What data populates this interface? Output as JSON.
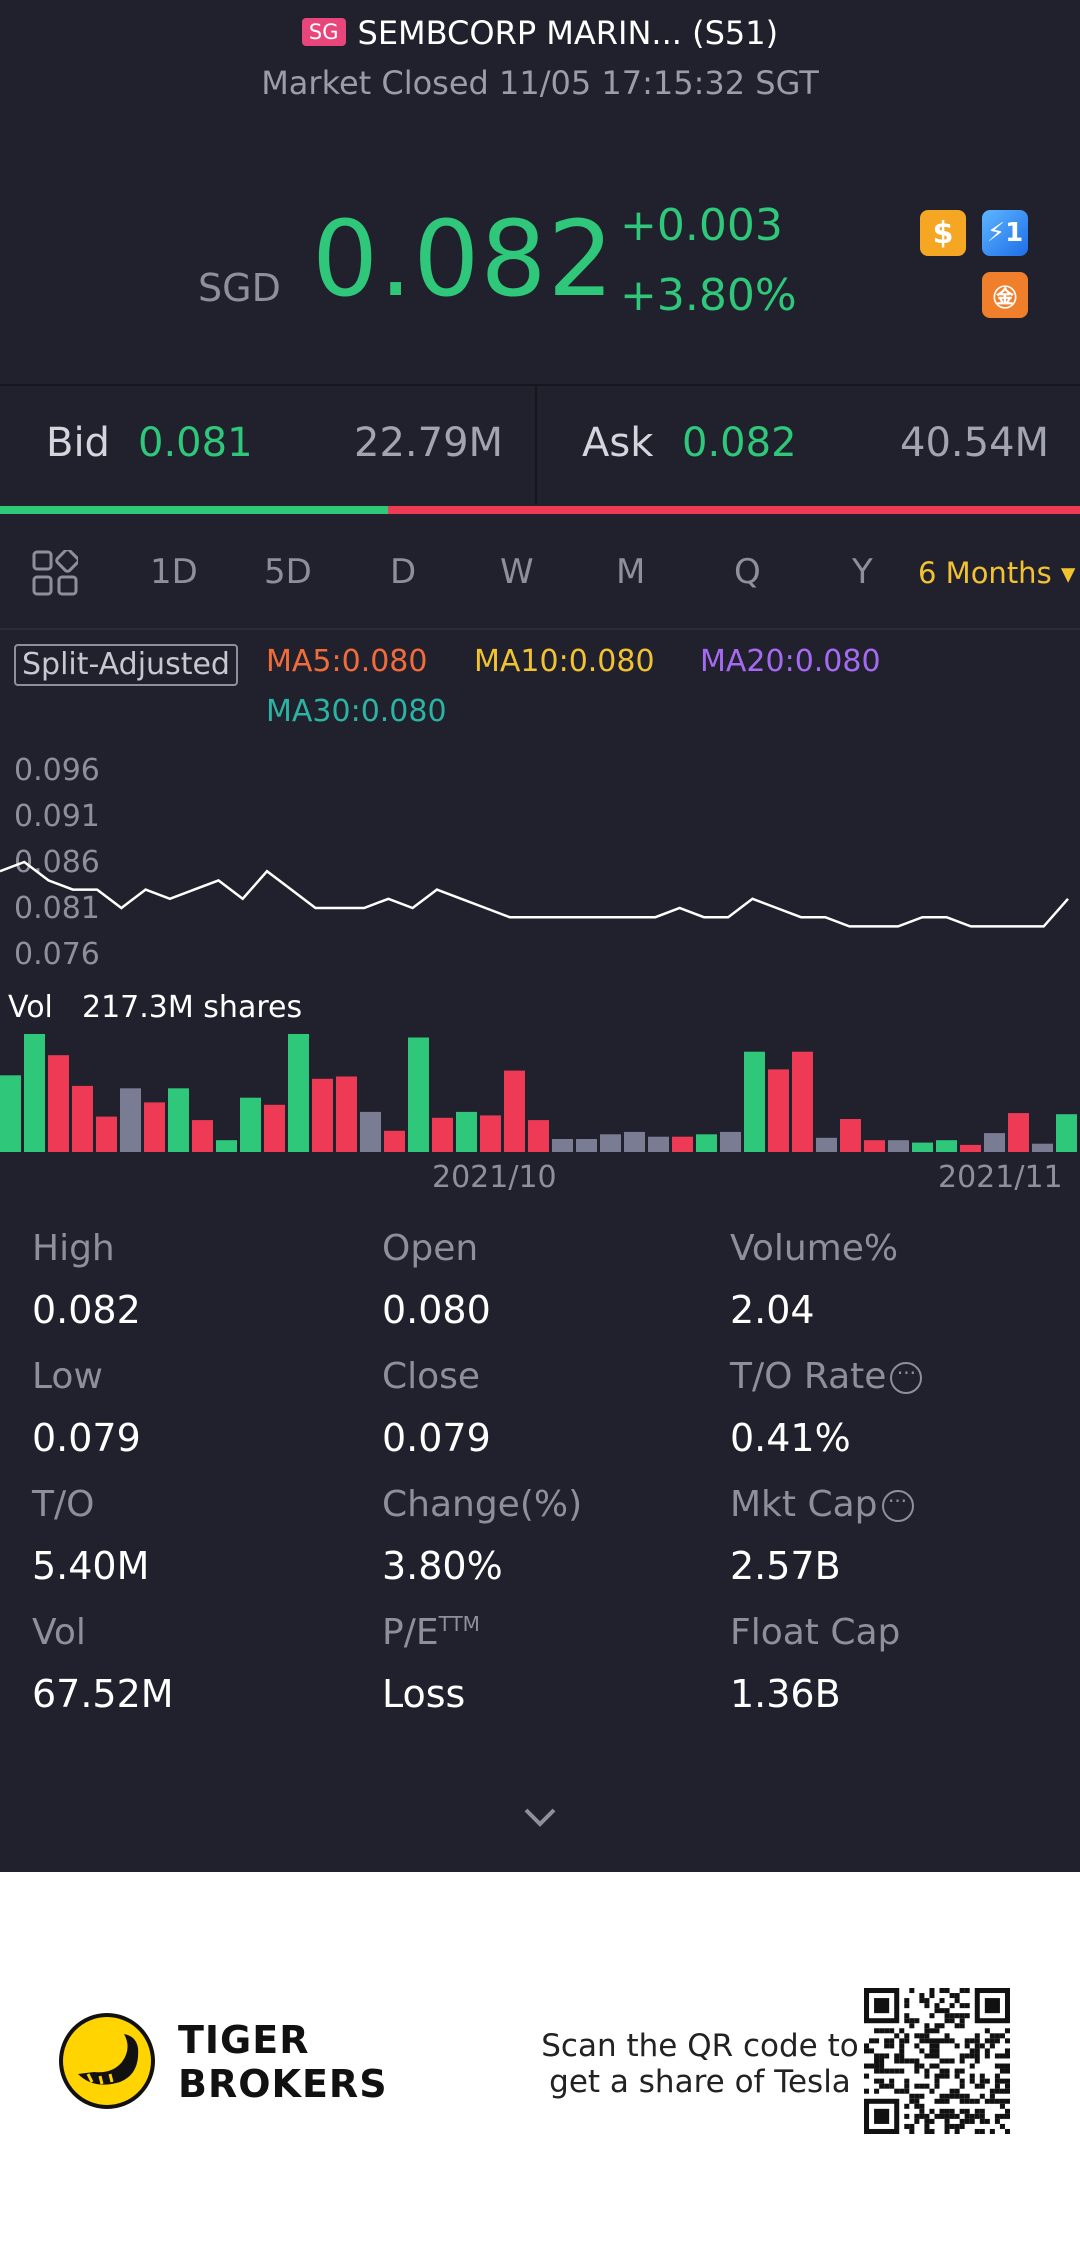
{
  "header": {
    "flag": "SG",
    "title": "SEMBCORP MARIN... (S51)",
    "status": "Market Closed 11/05 17:15:32 SGT"
  },
  "quote": {
    "currency": "SGD",
    "price": "0.082",
    "change": "+0.003",
    "change_pct": "+3.80%",
    "badges": [
      "dollar-icon",
      "flash-icon",
      "finance-icon"
    ],
    "badge_dollar": "$",
    "badge_flash": "⚡1",
    "badge_fin": "㊎"
  },
  "bidask": {
    "bid_label": "Bid",
    "bid_price": "0.081",
    "bid_size": "22.79M",
    "ask_label": "Ask",
    "ask_price": "0.082",
    "ask_size": "40.54M",
    "bid_ratio": 0.36
  },
  "tabs": {
    "items": [
      "1D",
      "5D",
      "D",
      "W",
      "M",
      "Q",
      "Y"
    ],
    "selected": "6 Months ▾"
  },
  "indicators": {
    "split": "Split-Adjusted",
    "ma5": "MA5:0.080",
    "ma10": "MA10:0.080",
    "ma20": "MA20:0.080",
    "ma30": "MA30:0.080"
  },
  "chart_data": {
    "type": "line",
    "y_ticks": [
      "0.096",
      "0.091",
      "0.086",
      "0.081",
      "0.076"
    ],
    "ylim": [
      0.076,
      0.096
    ],
    "prices": [
      0.085,
      0.086,
      0.084,
      0.083,
      0.083,
      0.081,
      0.083,
      0.082,
      0.083,
      0.084,
      0.082,
      0.085,
      0.083,
      0.081,
      0.081,
      0.081,
      0.082,
      0.081,
      0.083,
      0.082,
      0.081,
      0.08,
      0.08,
      0.08,
      0.08,
      0.08,
      0.08,
      0.08,
      0.081,
      0.08,
      0.08,
      0.082,
      0.081,
      0.08,
      0.08,
      0.079,
      0.079,
      0.079,
      0.08,
      0.08,
      0.079,
      0.079,
      0.079,
      0.079,
      0.082
    ],
    "vol_label": "Vol",
    "vol_text": "217.3M shares",
    "volume": [
      {
        "v": 0.65,
        "c": "green"
      },
      {
        "v": 1.0,
        "c": "green"
      },
      {
        "v": 0.82,
        "c": "red"
      },
      {
        "v": 0.56,
        "c": "red"
      },
      {
        "v": 0.3,
        "c": "red"
      },
      {
        "v": 0.54,
        "c": "gray"
      },
      {
        "v": 0.42,
        "c": "red"
      },
      {
        "v": 0.54,
        "c": "green"
      },
      {
        "v": 0.27,
        "c": "red"
      },
      {
        "v": 0.1,
        "c": "green"
      },
      {
        "v": 0.46,
        "c": "green"
      },
      {
        "v": 0.4,
        "c": "red"
      },
      {
        "v": 1.0,
        "c": "green"
      },
      {
        "v": 0.62,
        "c": "red"
      },
      {
        "v": 0.64,
        "c": "red"
      },
      {
        "v": 0.34,
        "c": "gray"
      },
      {
        "v": 0.18,
        "c": "red"
      },
      {
        "v": 0.97,
        "c": "green"
      },
      {
        "v": 0.29,
        "c": "red"
      },
      {
        "v": 0.34,
        "c": "green"
      },
      {
        "v": 0.31,
        "c": "red"
      },
      {
        "v": 0.69,
        "c": "red"
      },
      {
        "v": 0.27,
        "c": "red"
      },
      {
        "v": 0.11,
        "c": "gray"
      },
      {
        "v": 0.11,
        "c": "gray"
      },
      {
        "v": 0.15,
        "c": "gray"
      },
      {
        "v": 0.17,
        "c": "gray"
      },
      {
        "v": 0.13,
        "c": "gray"
      },
      {
        "v": 0.13,
        "c": "red"
      },
      {
        "v": 0.15,
        "c": "green"
      },
      {
        "v": 0.17,
        "c": "gray"
      },
      {
        "v": 0.85,
        "c": "green"
      },
      {
        "v": 0.7,
        "c": "red"
      },
      {
        "v": 0.85,
        "c": "red"
      },
      {
        "v": 0.12,
        "c": "gray"
      },
      {
        "v": 0.28,
        "c": "red"
      },
      {
        "v": 0.1,
        "c": "red"
      },
      {
        "v": 0.1,
        "c": "gray"
      },
      {
        "v": 0.08,
        "c": "green"
      },
      {
        "v": 0.1,
        "c": "green"
      },
      {
        "v": 0.06,
        "c": "red"
      },
      {
        "v": 0.16,
        "c": "gray"
      },
      {
        "v": 0.33,
        "c": "red"
      },
      {
        "v": 0.07,
        "c": "gray"
      },
      {
        "v": 0.32,
        "c": "green"
      }
    ],
    "x_ticks": [
      "2021/10",
      "2021/11"
    ],
    "line_color": "#ffffff",
    "colors": {
      "green": "#2fc77a",
      "red": "#ef3a56",
      "gray": "#7a7c93"
    }
  },
  "stats": {
    "high_label": "High",
    "high": "0.082",
    "open_label": "Open",
    "open": "0.080",
    "volpct_label": "Volume%",
    "volpct": "2.04",
    "low_label": "Low",
    "low": "0.079",
    "close_label": "Close",
    "close": "0.079",
    "torate_label": "T/O Rate",
    "torate": "0.41%",
    "to_label": "T/O",
    "to": "5.40M",
    "chg_label": "Change(%)",
    "chg": "3.80%",
    "mktcap_label": "Mkt Cap",
    "mktcap": "2.57B",
    "vol_label": "Vol",
    "vol": "67.52M",
    "pe_label": "P/E",
    "pe_sup": "TTM",
    "pe": "Loss",
    "floatcap_label": "Float Cap",
    "floatcap": "1.36B"
  },
  "footer": {
    "brand_line1": "TIGER",
    "brand_line2": "BROKERS",
    "scan_line1": "Scan the QR code to",
    "scan_line2": "get a share of Tesla"
  }
}
